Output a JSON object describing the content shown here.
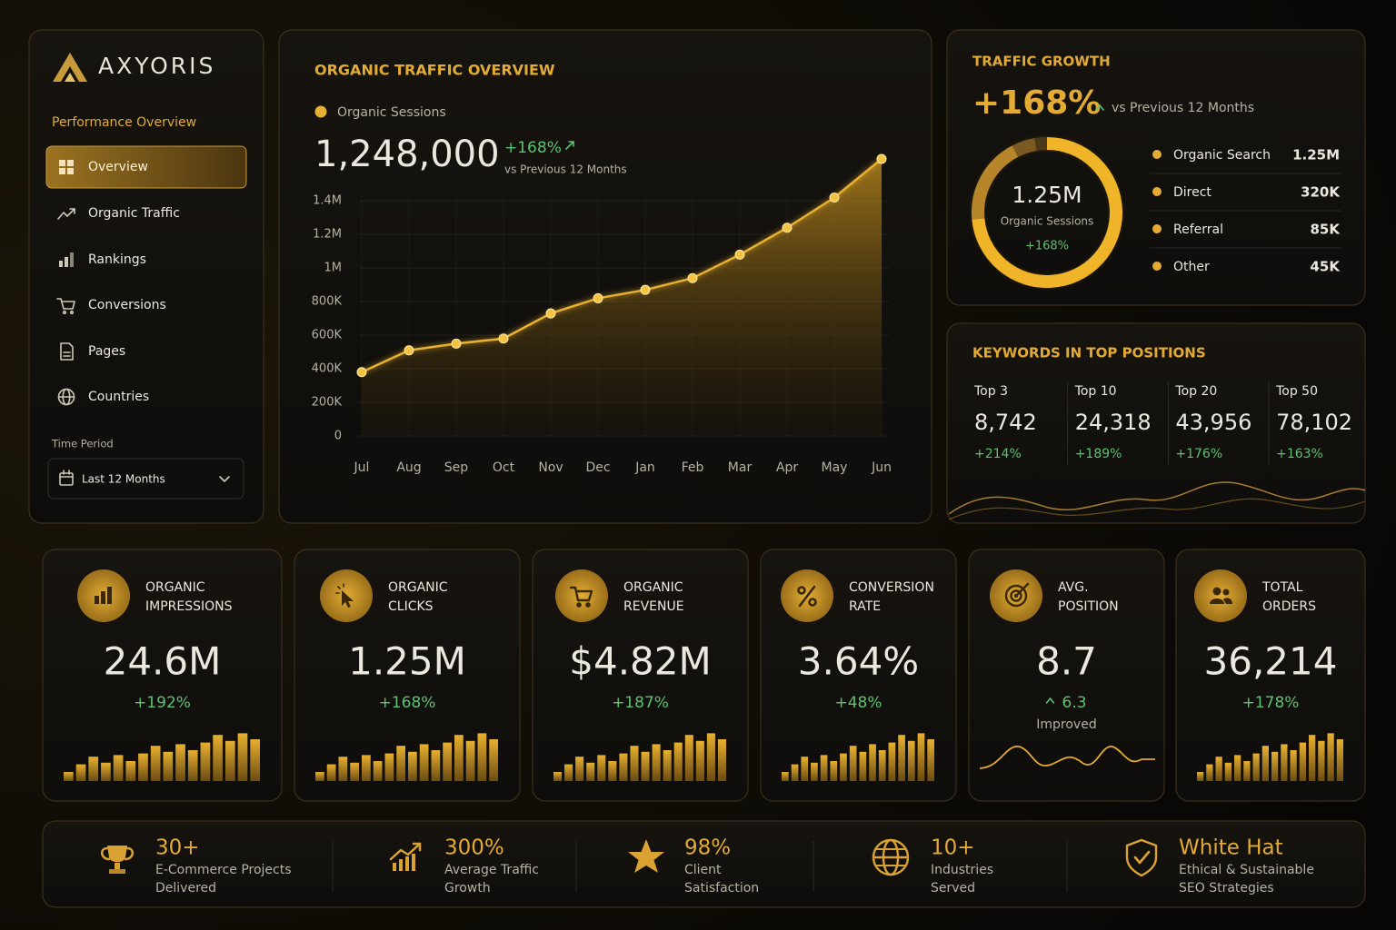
{
  "brand": "AXYORIS",
  "sidebar": {
    "section": "Performance Overview",
    "nav": [
      "Overview",
      "Organic Traffic",
      "Rankings",
      "Conversions",
      "Pages",
      "Countries"
    ],
    "time_period_label": "Time Period",
    "time_period": "Last 12 Months"
  },
  "chart_data": [
    {
      "type": "area",
      "title": "ORGANIC TRAFFIC OVERVIEW",
      "headline": "1,248,000",
      "change": "+168%",
      "comparison": "vs Previous 12 Months",
      "categories": [
        "Jul",
        "Aug",
        "Sep",
        "Oct",
        "Nov",
        "Dec",
        "Jan",
        "Feb",
        "Mar",
        "Apr",
        "May",
        "Jun"
      ],
      "series": [
        {
          "name": "Organic Sessions",
          "color": "#e8b030",
          "values": [
            380000,
            510000,
            550000,
            580000,
            730000,
            820000,
            870000,
            940000,
            1080000,
            1240000,
            1420000,
            1650000
          ]
        }
      ],
      "ylim": [
        0,
        1650000
      ],
      "yticks": [
        0,
        {
          "value": 200000,
          "label": "200K"
        },
        {
          "value": 400000,
          "label": "400K"
        },
        {
          "value": 600000,
          "label": "600K"
        },
        {
          "value": 800000,
          "label": "800K"
        },
        {
          "value": 1000000,
          "label": "1M"
        },
        {
          "value": 1200000,
          "label": "1.2M"
        },
        {
          "value": 1400000,
          "label": "1.4M"
        }
      ],
      "grid": true
    },
    {
      "type": "donut",
      "title": "TRAFFIC GROWTH",
      "headline": "+168%",
      "comparison": "vs Previous 12 Months",
      "center_value": "1.25M",
      "center_label": "Organic Sessions",
      "center_change": "+168%",
      "categories": [
        "Organic Search",
        "Direct",
        "Referral",
        "Other"
      ],
      "values": [
        1250000,
        320000,
        85000,
        45000
      ],
      "value_labels": [
        "1.25M",
        "320K",
        "85K",
        "45K"
      ],
      "colors": [
        "#f0b429",
        "#b8862a",
        "#7a5a20",
        "#4a3818"
      ]
    }
  ],
  "keywords": {
    "title": "KEYWORDS IN TOP POSITIONS",
    "items": [
      {
        "label": "Top 3",
        "value": "8,742",
        "change": "+214%"
      },
      {
        "label": "Top 10",
        "value": "24,318",
        "change": "+189%"
      },
      {
        "label": "Top 20",
        "value": "43,956",
        "change": "+176%"
      },
      {
        "label": "Top 50",
        "value": "78,102",
        "change": "+163%"
      }
    ]
  },
  "kpis": [
    {
      "title": [
        "ORGANIC",
        "IMPRESSIONS"
      ],
      "value": "24.6M",
      "change": "+192%"
    },
    {
      "title": [
        "ORGANIC",
        "CLICKS"
      ],
      "value": "1.25M",
      "change": "+168%"
    },
    {
      "title": [
        "ORGANIC",
        "REVENUE"
      ],
      "value": "$4.82M",
      "change": "+187%"
    },
    {
      "title": [
        "CONVERSION",
        "RATE"
      ],
      "value": "3.64%",
      "change": "+48%"
    },
    {
      "title": [
        "AVG.",
        "POSITION"
      ],
      "value": "8.7",
      "change": "6.3",
      "note": "Improved"
    },
    {
      "title": [
        "TOTAL",
        "ORDERS"
      ],
      "value": "36,214",
      "change": "+178%"
    }
  ],
  "highlights": [
    {
      "value": "30+",
      "lines": [
        "E-Commerce Projects",
        "Delivered"
      ]
    },
    {
      "value": "300%",
      "lines": [
        "Average Traffic",
        "Growth"
      ]
    },
    {
      "value": "98%",
      "lines": [
        "Client",
        "Satisfaction"
      ]
    },
    {
      "value": "10+",
      "lines": [
        "Industries",
        "Served"
      ]
    },
    {
      "value": "White Hat",
      "lines": [
        "Ethical & Sustainable",
        "SEO Strategies"
      ]
    }
  ]
}
